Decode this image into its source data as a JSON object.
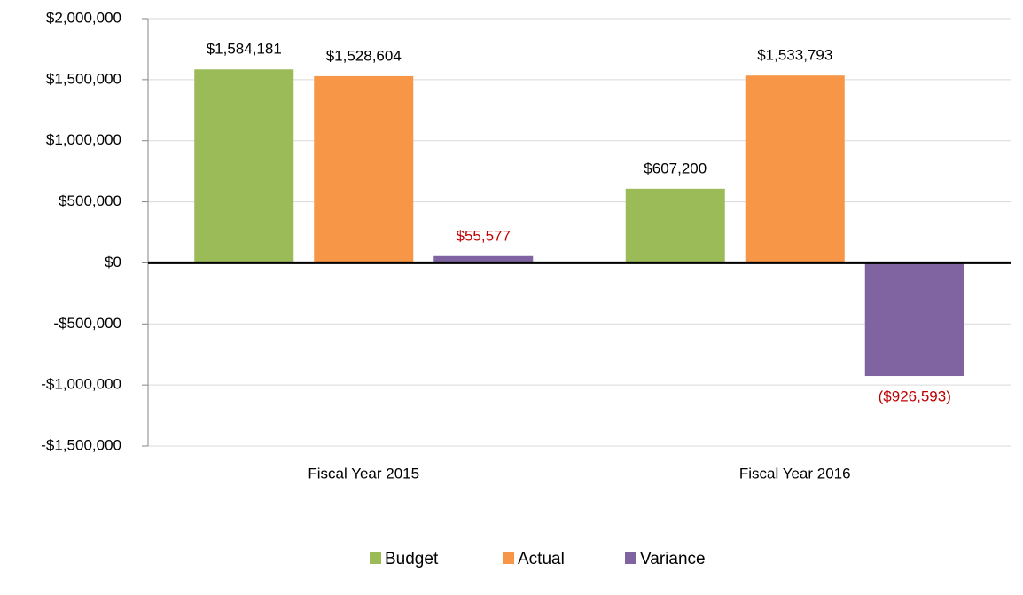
{
  "chart_data": {
    "type": "bar",
    "categories": [
      "Fiscal Year 2015",
      "Fiscal Year 2016"
    ],
    "series": [
      {
        "name": "Budget",
        "color": "#9bbb59",
        "label_color": "#000000",
        "values": [
          1584181,
          607200
        ],
        "value_labels": [
          "$1,584,181",
          "$607,200"
        ]
      },
      {
        "name": "Actual",
        "color": "#f79646",
        "label_color": "#000000",
        "values": [
          1528604,
          1533793
        ],
        "value_labels": [
          "$1,528,604",
          "$1,533,793"
        ]
      },
      {
        "name": "Variance",
        "color": "#8064a2",
        "label_color": "#c00000",
        "values": [
          55577,
          -926593
        ],
        "value_labels": [
          "$55,577",
          "($926,593)"
        ]
      }
    ],
    "ylim": [
      -1500000,
      2000000
    ],
    "yticks": [
      {
        "value": -1500000,
        "label": "-$1,500,000"
      },
      {
        "value": -1000000,
        "label": "-$1,000,000"
      },
      {
        "value": -500000,
        "label": "-$500,000"
      },
      {
        "value": 0,
        "label": "$0"
      },
      {
        "value": 500000,
        "label": "$500,000"
      },
      {
        "value": 1000000,
        "label": "$1,000,000"
      },
      {
        "value": 1500000,
        "label": "$1,500,000"
      },
      {
        "value": 2000000,
        "label": "$2,000,000"
      }
    ],
    "grid": true,
    "legend": "bottom"
  }
}
